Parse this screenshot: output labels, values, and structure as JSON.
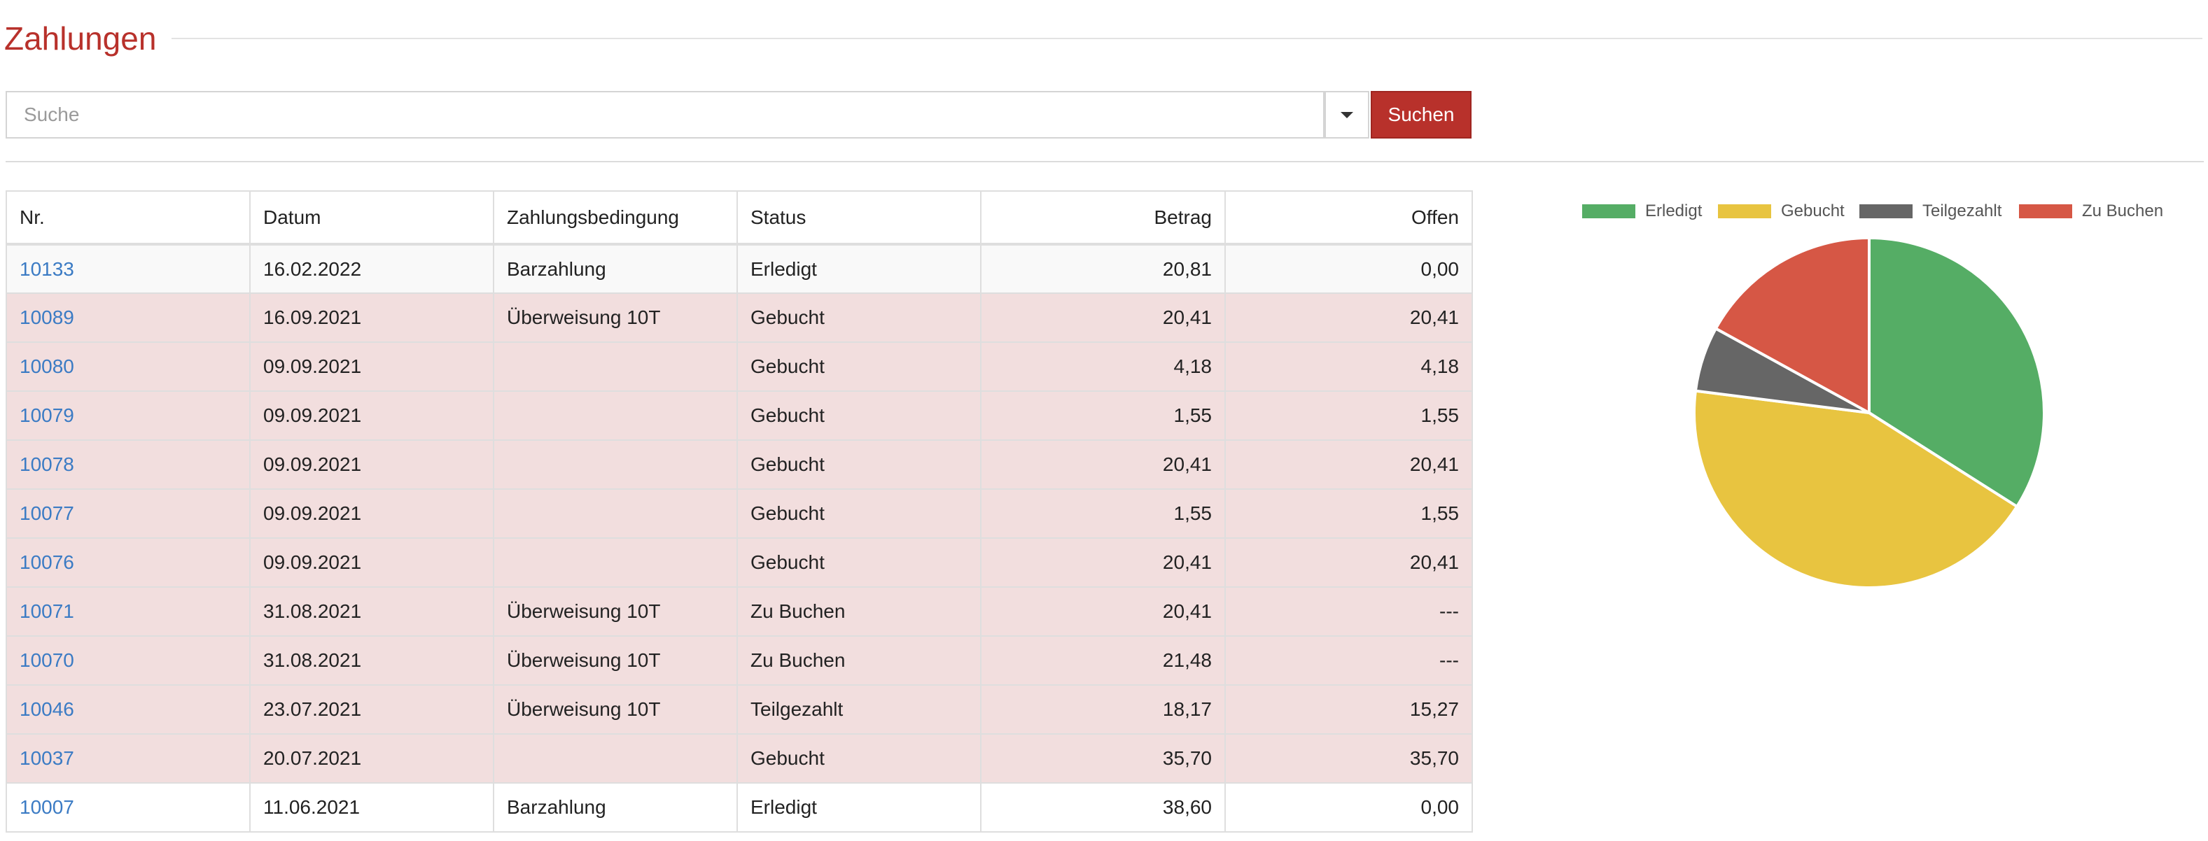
{
  "page": {
    "title": "Zahlungen"
  },
  "search": {
    "placeholder": "Suche",
    "value": "",
    "button_label": "Suchen",
    "dropdown_icon": "caret-down-icon"
  },
  "table": {
    "columns": [
      "Nr.",
      "Datum",
      "Zahlungsbedingung",
      "Status",
      "Betrag",
      "Offen"
    ],
    "rows": [
      {
        "nr": "10133",
        "datum": "16.02.2022",
        "bedingung": "Barzahlung",
        "status": "Erledigt",
        "betrag": "20,81",
        "offen": "0,00",
        "row_style": "done"
      },
      {
        "nr": "10089",
        "datum": "16.09.2021",
        "bedingung": "Überweisung 10T",
        "status": "Gebucht",
        "betrag": "20,41",
        "offen": "20,41",
        "row_style": "open"
      },
      {
        "nr": "10080",
        "datum": "09.09.2021",
        "bedingung": "",
        "status": "Gebucht",
        "betrag": "4,18",
        "offen": "4,18",
        "row_style": "open"
      },
      {
        "nr": "10079",
        "datum": "09.09.2021",
        "bedingung": "",
        "status": "Gebucht",
        "betrag": "1,55",
        "offen": "1,55",
        "row_style": "open"
      },
      {
        "nr": "10078",
        "datum": "09.09.2021",
        "bedingung": "",
        "status": "Gebucht",
        "betrag": "20,41",
        "offen": "20,41",
        "row_style": "open"
      },
      {
        "nr": "10077",
        "datum": "09.09.2021",
        "bedingung": "",
        "status": "Gebucht",
        "betrag": "1,55",
        "offen": "1,55",
        "row_style": "open"
      },
      {
        "nr": "10076",
        "datum": "09.09.2021",
        "bedingung": "",
        "status": "Gebucht",
        "betrag": "20,41",
        "offen": "20,41",
        "row_style": "open"
      },
      {
        "nr": "10071",
        "datum": "31.08.2021",
        "bedingung": "Überweisung 10T",
        "status": "Zu Buchen",
        "betrag": "20,41",
        "offen": "---",
        "row_style": "open"
      },
      {
        "nr": "10070",
        "datum": "31.08.2021",
        "bedingung": "Überweisung 10T",
        "status": "Zu Buchen",
        "betrag": "21,48",
        "offen": "---",
        "row_style": "open"
      },
      {
        "nr": "10046",
        "datum": "23.07.2021",
        "bedingung": "Überweisung 10T",
        "status": "Teilgezahlt",
        "betrag": "18,17",
        "offen": "15,27",
        "row_style": "open"
      },
      {
        "nr": "10037",
        "datum": "20.07.2021",
        "bedingung": "",
        "status": "Gebucht",
        "betrag": "35,70",
        "offen": "35,70",
        "row_style": "open"
      },
      {
        "nr": "10007",
        "datum": "11.06.2021",
        "bedingung": "Barzahlung",
        "status": "Erledigt",
        "betrag": "38,60",
        "offen": "0,00",
        "row_style": "plain"
      }
    ]
  },
  "colors": {
    "accent": "#b8312b",
    "link": "#3b7bc4",
    "row_open_bg": "#f2dede"
  },
  "chart_data": {
    "type": "pie",
    "legend_position": "top",
    "labels": [
      "Erledigt",
      "Gebucht",
      "Teilgezahlt",
      "Zu Buchen"
    ],
    "values": [
      34,
      43,
      6,
      17
    ],
    "colors": [
      "#55ad65",
      "#e8c440",
      "#666666",
      "#d65745"
    ]
  }
}
